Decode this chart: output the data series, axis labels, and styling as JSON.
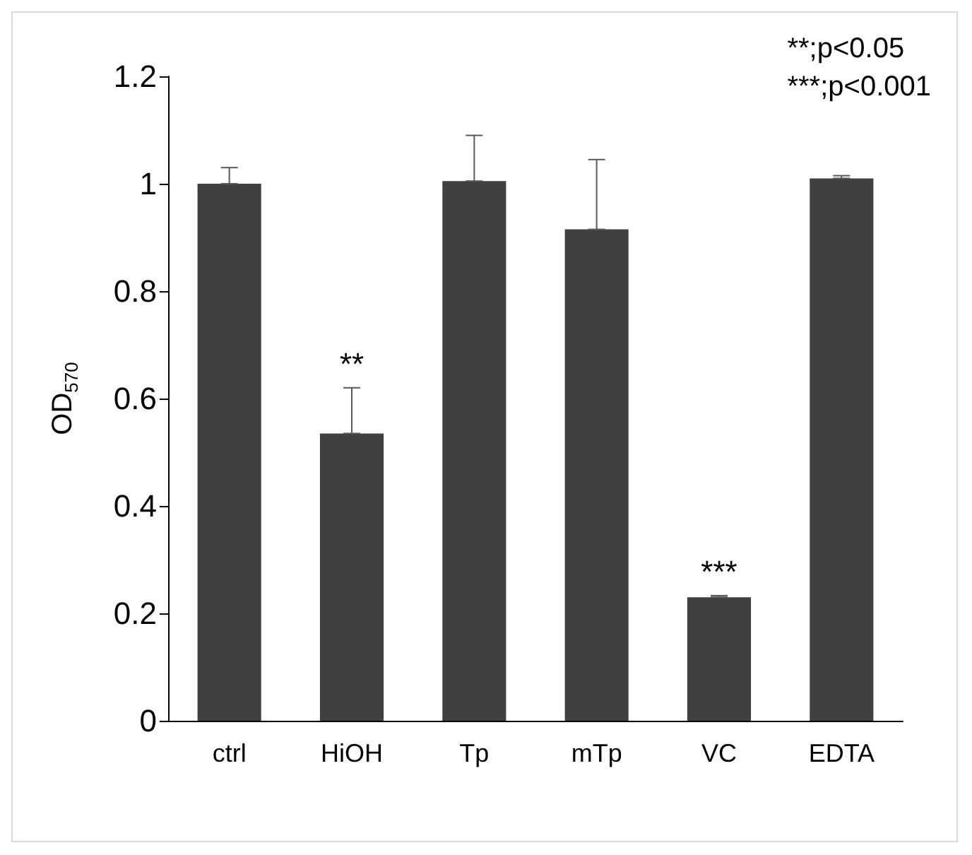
{
  "chart_data": {
    "type": "bar",
    "ylabel": "OD$_{570}$",
    "categories": [
      "ctrl",
      "HiOH",
      "Tp",
      "mTp",
      "VC",
      "EDTA"
    ],
    "values": [
      1.0,
      0.535,
      1.005,
      0.915,
      0.23,
      1.01
    ],
    "errors": [
      [
        1.0,
        1.03
      ],
      [
        0.535,
        0.62
      ],
      [
        1.005,
        1.09
      ],
      [
        0.915,
        1.045
      ],
      [
        0.23,
        0.233
      ],
      [
        1.01,
        1.015
      ]
    ],
    "color": "#404040",
    "ylim": [
      0,
      1.2
    ],
    "yticks": [
      0,
      0.2,
      0.4,
      0.6,
      0.8,
      1,
      1.2
    ],
    "grid": false,
    "annotations": [
      {
        "text": "**",
        "x": "HiOH",
        "y": 0.62
      },
      {
        "text": "***",
        "x": "VC",
        "y": 0.233
      },
      "**;p<0.05",
      "***;p<0.001"
    ]
  }
}
